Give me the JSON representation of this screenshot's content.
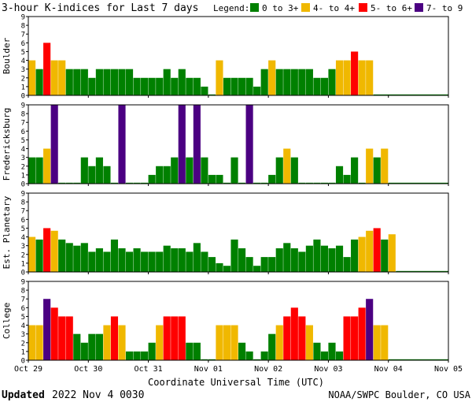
{
  "chart_data": {
    "type": "bar",
    "title": "3-hour K-indices for Last 7 days",
    "legend": {
      "label": "Legend:",
      "placement": "top-right",
      "items": [
        {
          "label": "0 to 3+",
          "color": "#008000"
        },
        {
          "label": "4- to 4+",
          "color": "#f0b800"
        },
        {
          "label": "5- to 6+",
          "color": "#ff0000"
        },
        {
          "label": "7- to 9",
          "color": "#4b0082"
        }
      ]
    },
    "xlabel": "Coordinate Universal Time (UTC)",
    "x_ticks": [
      "Oct 29",
      "Oct 30",
      "Oct 31",
      "Nov 01",
      "Nov 02",
      "Nov 03",
      "Nov 04",
      "Nov 05"
    ],
    "ylim": [
      0,
      9
    ],
    "y_ticks": [
      "0",
      "1",
      "2",
      "3",
      "4",
      "5",
      "6",
      "7",
      "8",
      "9"
    ],
    "grid": false,
    "bins_per_day": 8,
    "days": 7,
    "panels": [
      {
        "name": "Boulder",
        "values": [
          4,
          3,
          6,
          4,
          4,
          3,
          3,
          3,
          2,
          3,
          3,
          3,
          3,
          3,
          2,
          2,
          2,
          2,
          3,
          2,
          3,
          2,
          2,
          1,
          0,
          4,
          2,
          2,
          2,
          2,
          1,
          3,
          4,
          3,
          3,
          3,
          3,
          3,
          2,
          2,
          3,
          4,
          4,
          5,
          4,
          4
        ]
      },
      {
        "name": "Fredericksburg",
        "values": [
          3,
          3,
          4,
          9,
          0,
          0,
          0,
          3,
          2,
          3,
          2,
          0,
          9,
          0,
          0,
          0,
          1,
          2,
          2,
          3,
          9,
          3,
          9,
          3,
          1,
          1,
          0,
          3,
          0,
          9,
          0,
          0,
          1,
          3,
          4,
          3,
          0,
          0,
          0,
          0,
          0,
          2,
          1,
          3,
          0,
          4,
          3,
          4
        ]
      },
      {
        "name": "Est. Planetary",
        "values": [
          4,
          3.7,
          5,
          4.7,
          3.7,
          3.3,
          3,
          3.3,
          2.3,
          2.7,
          2.3,
          3.7,
          2.7,
          2.3,
          2.7,
          2.3,
          2.3,
          2.3,
          3,
          2.7,
          2.7,
          2.3,
          3.3,
          2.3,
          1.7,
          1,
          0.7,
          3.7,
          2.7,
          1.7,
          0.7,
          1.7,
          1.7,
          2.7,
          3.3,
          2.7,
          2.3,
          3,
          3.7,
          3,
          2.7,
          3,
          1.7,
          3.7,
          4,
          4.7,
          5,
          3.7,
          4.3
        ]
      },
      {
        "name": "College",
        "values": [
          4,
          4,
          7,
          6,
          5,
          5,
          3,
          2,
          3,
          3,
          4,
          5,
          4,
          1,
          1,
          1,
          2,
          4,
          5,
          5,
          5,
          2,
          2,
          0,
          0,
          4,
          4,
          4,
          2,
          1,
          0,
          1,
          3,
          4,
          5,
          6,
          5,
          4,
          2,
          1,
          2,
          1,
          5,
          5,
          6,
          7,
          4,
          4
        ]
      }
    ]
  },
  "footer": {
    "updated_label": "Updated",
    "updated_value": "2022 Nov  4 0030",
    "source": "NOAA/SWPC Boulder, CO USA"
  }
}
